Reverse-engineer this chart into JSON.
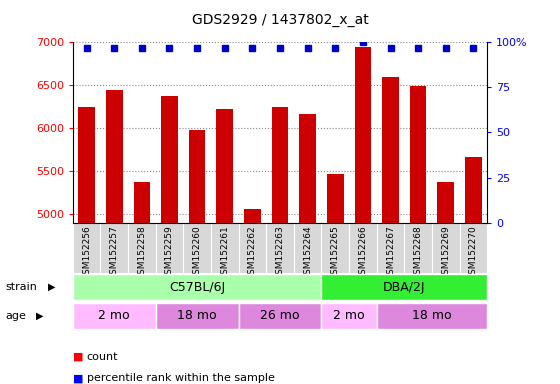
{
  "title": "GDS2929 / 1437802_x_at",
  "samples": [
    "GSM152256",
    "GSM152257",
    "GSM152258",
    "GSM152259",
    "GSM152260",
    "GSM152261",
    "GSM152262",
    "GSM152263",
    "GSM152264",
    "GSM152265",
    "GSM152266",
    "GSM152267",
    "GSM152268",
    "GSM152269",
    "GSM152270"
  ],
  "counts": [
    6250,
    6450,
    5370,
    6370,
    5980,
    6220,
    5060,
    6250,
    6160,
    5470,
    6950,
    6600,
    6490,
    5370,
    5660
  ],
  "percentile_ranks": [
    97,
    97,
    97,
    97,
    97,
    97,
    97,
    97,
    97,
    97,
    100,
    97,
    97,
    97,
    97
  ],
  "ylim_left": [
    4900,
    7000
  ],
  "ylim_right": [
    0,
    100
  ],
  "yticks_left": [
    5000,
    5500,
    6000,
    6500,
    7000
  ],
  "yticks_right": [
    0,
    25,
    50,
    75,
    100
  ],
  "bar_color": "#cc0000",
  "dot_color": "#0000cc",
  "strain_groups": [
    {
      "label": "C57BL/6J",
      "start": 0,
      "end": 9,
      "color": "#aaffaa"
    },
    {
      "label": "DBA/2J",
      "start": 9,
      "end": 15,
      "color": "#33ee33"
    }
  ],
  "age_groups": [
    {
      "label": "2 mo",
      "start": 0,
      "end": 3,
      "color": "#ffbbff"
    },
    {
      "label": "18 mo",
      "start": 3,
      "end": 6,
      "color": "#dd88dd"
    },
    {
      "label": "26 mo",
      "start": 6,
      "end": 9,
      "color": "#dd88dd"
    },
    {
      "label": "2 mo",
      "start": 9,
      "end": 11,
      "color": "#ffbbff"
    },
    {
      "label": "18 mo",
      "start": 11,
      "end": 15,
      "color": "#dd88dd"
    }
  ]
}
